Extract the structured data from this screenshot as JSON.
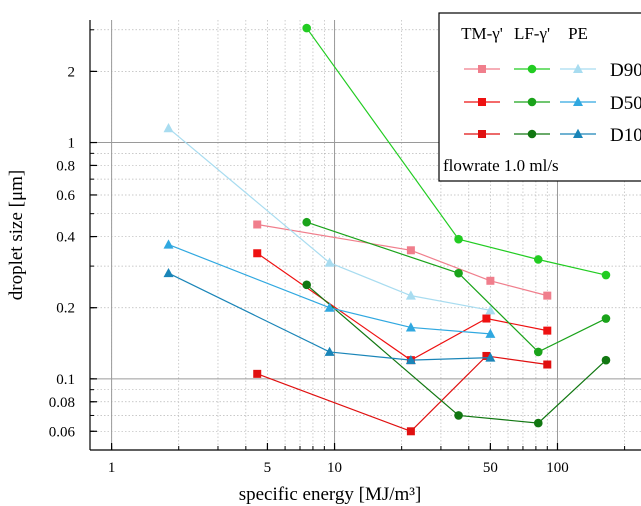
{
  "chart_data": {
    "type": "line",
    "xlabel": "specific energy [MJ/m³]",
    "ylabel": "droplet size [μm]",
    "xscale": "log",
    "yscale": "log",
    "xlim": [
      0.8,
      260
    ],
    "ylim": [
      0.05,
      3.3
    ],
    "xticks": [
      {
        "value": 1,
        "label": "1"
      },
      {
        "value": 5,
        "label": "5"
      },
      {
        "value": 10,
        "label": "10"
      },
      {
        "value": 50,
        "label": "50"
      },
      {
        "value": 100,
        "label": "100"
      }
    ],
    "yticks": [
      {
        "value": 0.06,
        "label": "0.06"
      },
      {
        "value": 0.08,
        "label": "0.08"
      },
      {
        "value": 0.1,
        "label": "0.1"
      },
      {
        "value": 0.2,
        "label": "0.2"
      },
      {
        "value": 0.4,
        "label": "0.4"
      },
      {
        "value": 0.6,
        "label": "0.6"
      },
      {
        "value": 0.8,
        "label": "0.8"
      },
      {
        "value": 1,
        "label": "1"
      },
      {
        "value": 2,
        "label": "2"
      }
    ],
    "grid": true,
    "legend": {
      "placement": "top-right",
      "column_headers": [
        "TM-γ'",
        "LF-γ'",
        "PE"
      ],
      "row_labels": [
        "D90",
        "D50",
        "D10"
      ],
      "note": "flowrate 1.0 ml/s"
    },
    "series": [
      {
        "group": "TM-γ'",
        "stat": "D90",
        "color": "#f07e8c",
        "marker": "square",
        "x": [
          4.5,
          22,
          50,
          90
        ],
        "y": [
          0.45,
          0.35,
          0.26,
          0.225
        ]
      },
      {
        "group": "TM-γ'",
        "stat": "D50",
        "color": "#ee1111",
        "marker": "square",
        "x": [
          4.5,
          22,
          48,
          90
        ],
        "y": [
          0.34,
          0.12,
          0.18,
          0.16
        ]
      },
      {
        "group": "TM-γ'",
        "stat": "D10",
        "color": "#e01010",
        "marker": "square",
        "x": [
          4.5,
          22,
          48,
          90
        ],
        "y": [
          0.105,
          0.06,
          0.125,
          0.115
        ]
      },
      {
        "group": "LF-γ'",
        "stat": "D90",
        "color": "#22cc22",
        "marker": "circle",
        "x": [
          7.5,
          36,
          82,
          165
        ],
        "y": [
          3.05,
          0.39,
          0.32,
          0.275
        ]
      },
      {
        "group": "LF-γ'",
        "stat": "D50",
        "color": "#1aa31a",
        "marker": "circle",
        "x": [
          7.5,
          36,
          82,
          165
        ],
        "y": [
          0.46,
          0.28,
          0.13,
          0.18
        ]
      },
      {
        "group": "LF-γ'",
        "stat": "D10",
        "color": "#117711",
        "marker": "circle",
        "x": [
          7.5,
          36,
          82,
          165
        ],
        "y": [
          0.25,
          0.07,
          0.065,
          0.12
        ]
      },
      {
        "group": "PE",
        "stat": "D90",
        "color": "#a8dcf0",
        "marker": "triangle",
        "x": [
          1.8,
          9.5,
          22,
          50
        ],
        "y": [
          1.15,
          0.31,
          0.225,
          0.195
        ]
      },
      {
        "group": "PE",
        "stat": "D50",
        "color": "#30a8e0",
        "marker": "triangle",
        "x": [
          1.8,
          9.5,
          22,
          50
        ],
        "y": [
          0.37,
          0.2,
          0.165,
          0.155
        ]
      },
      {
        "group": "PE",
        "stat": "D10",
        "color": "#1a85b8",
        "marker": "triangle",
        "x": [
          1.8,
          9.5,
          22,
          50
        ],
        "y": [
          0.28,
          0.13,
          0.12,
          0.123
        ]
      }
    ]
  }
}
